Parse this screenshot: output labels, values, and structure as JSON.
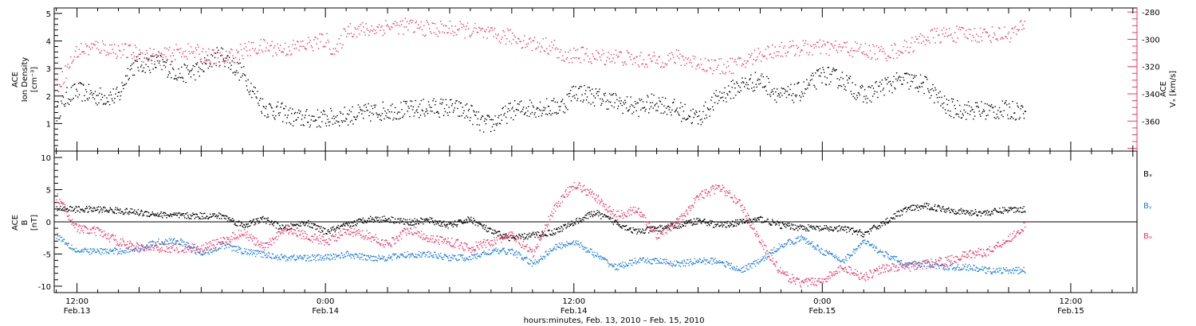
{
  "xaxis": {
    "title": "hours:minutes, Feb. 13, 2010 – Feb. 15, 2010",
    "ticks": [
      {
        "hour": 12,
        "time": "12:00",
        "date": "Feb.13"
      },
      {
        "hour": 24,
        "time": "0:00",
        "date": "Feb.14"
      },
      {
        "hour": 36,
        "time": "12:00",
        "date": "Feb.14"
      },
      {
        "hour": 48,
        "time": "0:00",
        "date": "Feb.15"
      },
      {
        "hour": 60,
        "time": "12:00",
        "date": "Feb.15"
      }
    ]
  },
  "panel1": {
    "left_label": [
      "ACE",
      "Ion Density",
      "[cm⁻³]"
    ],
    "right_label": [
      "ACE",
      "Vₓ [km/s]"
    ]
  },
  "panel2": {
    "left_label": [
      "ACE",
      "B",
      "[nT]"
    ],
    "legend": [
      "Bₓ",
      "Bᵧ",
      "Bₔ"
    ]
  },
  "colors": {
    "bx": "#000000",
    "by": "#1f7fd6",
    "bz": "#e8386a",
    "density": "#000000",
    "vx": "#e8386a",
    "axis": "#000000"
  },
  "chart_data": [
    {
      "type": "scatter",
      "title": "",
      "xlabel": "hours:minutes, Feb. 13, 2010 – Feb. 15, 2010",
      "x_unit": "hours since 2010-02-13 00:00",
      "xlim": [
        10.9,
        63.2
      ],
      "ylabel": "ACE Ion Density [cm⁻³]",
      "ylim": [
        0,
        5.2
      ],
      "y2label": "ACE Vx [km/s]",
      "y2lim": [
        -382,
        -277
      ],
      "series": [
        {
          "name": "Ion Density",
          "axis": "left",
          "x": [
            11.0,
            11.5,
            12.0,
            13.0,
            14.0,
            14.5,
            15.0,
            16.0,
            17.0,
            18.0,
            18.5,
            19.0,
            20.0,
            21.0,
            22.0,
            22.5,
            23.0,
            24.0,
            25.0,
            26.0,
            27.0,
            28.0,
            29.0,
            30.0,
            31.0,
            31.5,
            32.0,
            33.0,
            34.0,
            35.0,
            35.5,
            36.0,
            37.0,
            38.0,
            39.0,
            40.0,
            41.0,
            42.0,
            43.0,
            44.0,
            45.0,
            46.0,
            47.0,
            48.0,
            49.0,
            50.0,
            51.0,
            52.0,
            53.0,
            54.0,
            55.0,
            56.0,
            57.0,
            57.8
          ],
          "values": [
            1.4,
            2.0,
            2.2,
            2.0,
            2.0,
            3.0,
            3.2,
            3.2,
            2.8,
            3.0,
            3.4,
            3.5,
            2.8,
            1.6,
            1.4,
            1.2,
            1.2,
            1.2,
            1.3,
            1.4,
            1.5,
            1.5,
            1.6,
            1.6,
            1.4,
            1.0,
            1.0,
            1.5,
            1.6,
            1.6,
            1.7,
            2.2,
            2.0,
            1.8,
            1.6,
            1.8,
            1.5,
            1.2,
            2.0,
            2.4,
            2.6,
            2.0,
            2.2,
            2.8,
            2.6,
            2.0,
            2.4,
            2.6,
            2.4,
            1.6,
            1.5,
            1.5,
            1.5,
            1.5
          ]
        },
        {
          "name": "Vx",
          "axis": "right",
          "x": [
            11.0,
            12.0,
            13.0,
            14.0,
            15.0,
            16.0,
            17.0,
            18.0,
            19.0,
            20.0,
            21.0,
            22.0,
            23.0,
            24.0,
            24.5,
            25.0,
            26.0,
            27.0,
            28.0,
            29.0,
            30.0,
            31.0,
            32.0,
            33.0,
            34.0,
            35.0,
            35.5,
            36.0,
            37.0,
            38.0,
            39.0,
            40.0,
            41.0,
            42.0,
            43.0,
            44.0,
            45.0,
            46.0,
            47.0,
            48.0,
            49.0,
            50.0,
            51.0,
            52.0,
            53.0,
            54.0,
            55.0,
            56.0,
            57.0,
            57.8
          ],
          "values": [
            -335,
            -308,
            -305,
            -308,
            -310,
            -313,
            -308,
            -310,
            -315,
            -308,
            -305,
            -307,
            -304,
            -300,
            -310,
            -292,
            -293,
            -290,
            -290,
            -292,
            -292,
            -293,
            -297,
            -298,
            -303,
            -305,
            -315,
            -310,
            -313,
            -312,
            -315,
            -315,
            -313,
            -317,
            -320,
            -318,
            -310,
            -307,
            -306,
            -306,
            -306,
            -308,
            -310,
            -306,
            -298,
            -296,
            -296,
            -296,
            -296,
            -290
          ]
        }
      ]
    },
    {
      "type": "scatter",
      "title": "",
      "xlabel": "hours:minutes, Feb. 13, 2010 – Feb. 15, 2010",
      "x_unit": "hours since 2010-02-13 00:00",
      "xlim": [
        10.9,
        63.2
      ],
      "ylabel": "ACE B [nT]",
      "ylim": [
        -11,
        11
      ],
      "series": [
        {
          "name": "Bₓ",
          "x": [
            11.0,
            12.0,
            13.0,
            14.0,
            15.0,
            16.0,
            17.0,
            18.0,
            19.0,
            20.0,
            21.0,
            22.0,
            23.0,
            24.0,
            25.0,
            26.0,
            27.0,
            28.0,
            29.0,
            30.0,
            31.0,
            32.0,
            33.0,
            34.0,
            35.0,
            36.0,
            37.0,
            38.0,
            39.0,
            40.0,
            41.0,
            42.0,
            43.0,
            44.0,
            45.0,
            46.0,
            47.0,
            48.0,
            49.0,
            50.0,
            51.0,
            52.0,
            53.0,
            54.0,
            55.0,
            56.0,
            57.0,
            57.8
          ],
          "values": [
            2.2,
            2.0,
            2.0,
            1.8,
            1.5,
            1.2,
            1.0,
            1.0,
            1.0,
            -0.5,
            0.5,
            -1.0,
            0.0,
            -1.5,
            -0.5,
            0.5,
            0.5,
            0.0,
            0.3,
            -0.5,
            0.5,
            -1.5,
            -2.5,
            -2.0,
            -1.5,
            0.0,
            1.5,
            0.0,
            -1.5,
            -1.0,
            -0.5,
            0.3,
            -0.5,
            0.0,
            0.5,
            -0.5,
            -0.8,
            -1.0,
            -1.0,
            -1.8,
            0.0,
            2.0,
            2.5,
            2.0,
            1.5,
            1.5,
            2.0,
            2.0
          ]
        },
        {
          "name": "Bᵧ",
          "x": [
            11.0,
            12.0,
            13.0,
            14.0,
            15.0,
            16.0,
            17.0,
            18.0,
            19.0,
            20.0,
            21.0,
            22.0,
            23.0,
            24.0,
            25.0,
            26.0,
            27.0,
            28.0,
            29.0,
            30.0,
            31.0,
            32.0,
            33.0,
            34.0,
            35.0,
            36.0,
            37.0,
            38.0,
            39.0,
            40.0,
            41.0,
            42.0,
            43.0,
            44.0,
            45.0,
            46.0,
            47.0,
            48.0,
            49.0,
            50.0,
            51.0,
            52.0,
            53.0,
            54.0,
            55.0,
            56.0,
            57.0,
            57.8
          ],
          "values": [
            -2.0,
            -4.5,
            -4.5,
            -4.5,
            -4.0,
            -3.0,
            -3.0,
            -5.0,
            -3.5,
            -4.5,
            -5.0,
            -5.5,
            -5.5,
            -5.5,
            -5.0,
            -5.5,
            -5.5,
            -5.0,
            -5.0,
            -5.5,
            -5.5,
            -4.5,
            -4.5,
            -6.5,
            -4.0,
            -3.0,
            -5.0,
            -7.0,
            -6.0,
            -6.0,
            -6.5,
            -6.0,
            -6.0,
            -7.5,
            -6.0,
            -3.5,
            -2.5,
            -4.5,
            -6.0,
            -3.0,
            -5.0,
            -6.5,
            -6.5,
            -7.0,
            -7.0,
            -7.5,
            -7.5,
            -7.5
          ]
        },
        {
          "name": "Bₔ",
          "x": [
            11.0,
            12.0,
            13.0,
            14.0,
            15.0,
            16.0,
            17.0,
            18.0,
            19.0,
            20.0,
            21.0,
            22.0,
            23.0,
            24.0,
            25.0,
            26.0,
            27.0,
            28.0,
            29.0,
            30.0,
            31.0,
            32.0,
            33.0,
            34.0,
            35.0,
            36.0,
            37.0,
            38.0,
            39.0,
            40.0,
            41.0,
            42.0,
            43.0,
            44.0,
            45.0,
            46.0,
            47.0,
            48.0,
            49.0,
            50.0,
            51.0,
            52.0,
            53.0,
            54.0,
            55.0,
            56.0,
            57.0,
            57.8
          ],
          "values": [
            4.0,
            -1.0,
            -1.5,
            -3.0,
            -4.0,
            -4.0,
            -4.0,
            -4.0,
            -3.0,
            -1.5,
            -4.0,
            -1.0,
            -2.0,
            -3.0,
            -1.5,
            -2.0,
            -3.5,
            -1.0,
            -2.5,
            -3.0,
            -4.0,
            -3.0,
            -2.0,
            -5.0,
            2.0,
            6.0,
            4.0,
            1.0,
            2.0,
            -2.0,
            0.0,
            4.0,
            5.5,
            3.0,
            -3.0,
            -8.0,
            -9.5,
            -9.0,
            -7.0,
            -8.5,
            -7.0,
            -7.0,
            -6.5,
            -6.0,
            -5.0,
            -4.5,
            -2.5,
            -0.5
          ]
        }
      ]
    }
  ]
}
